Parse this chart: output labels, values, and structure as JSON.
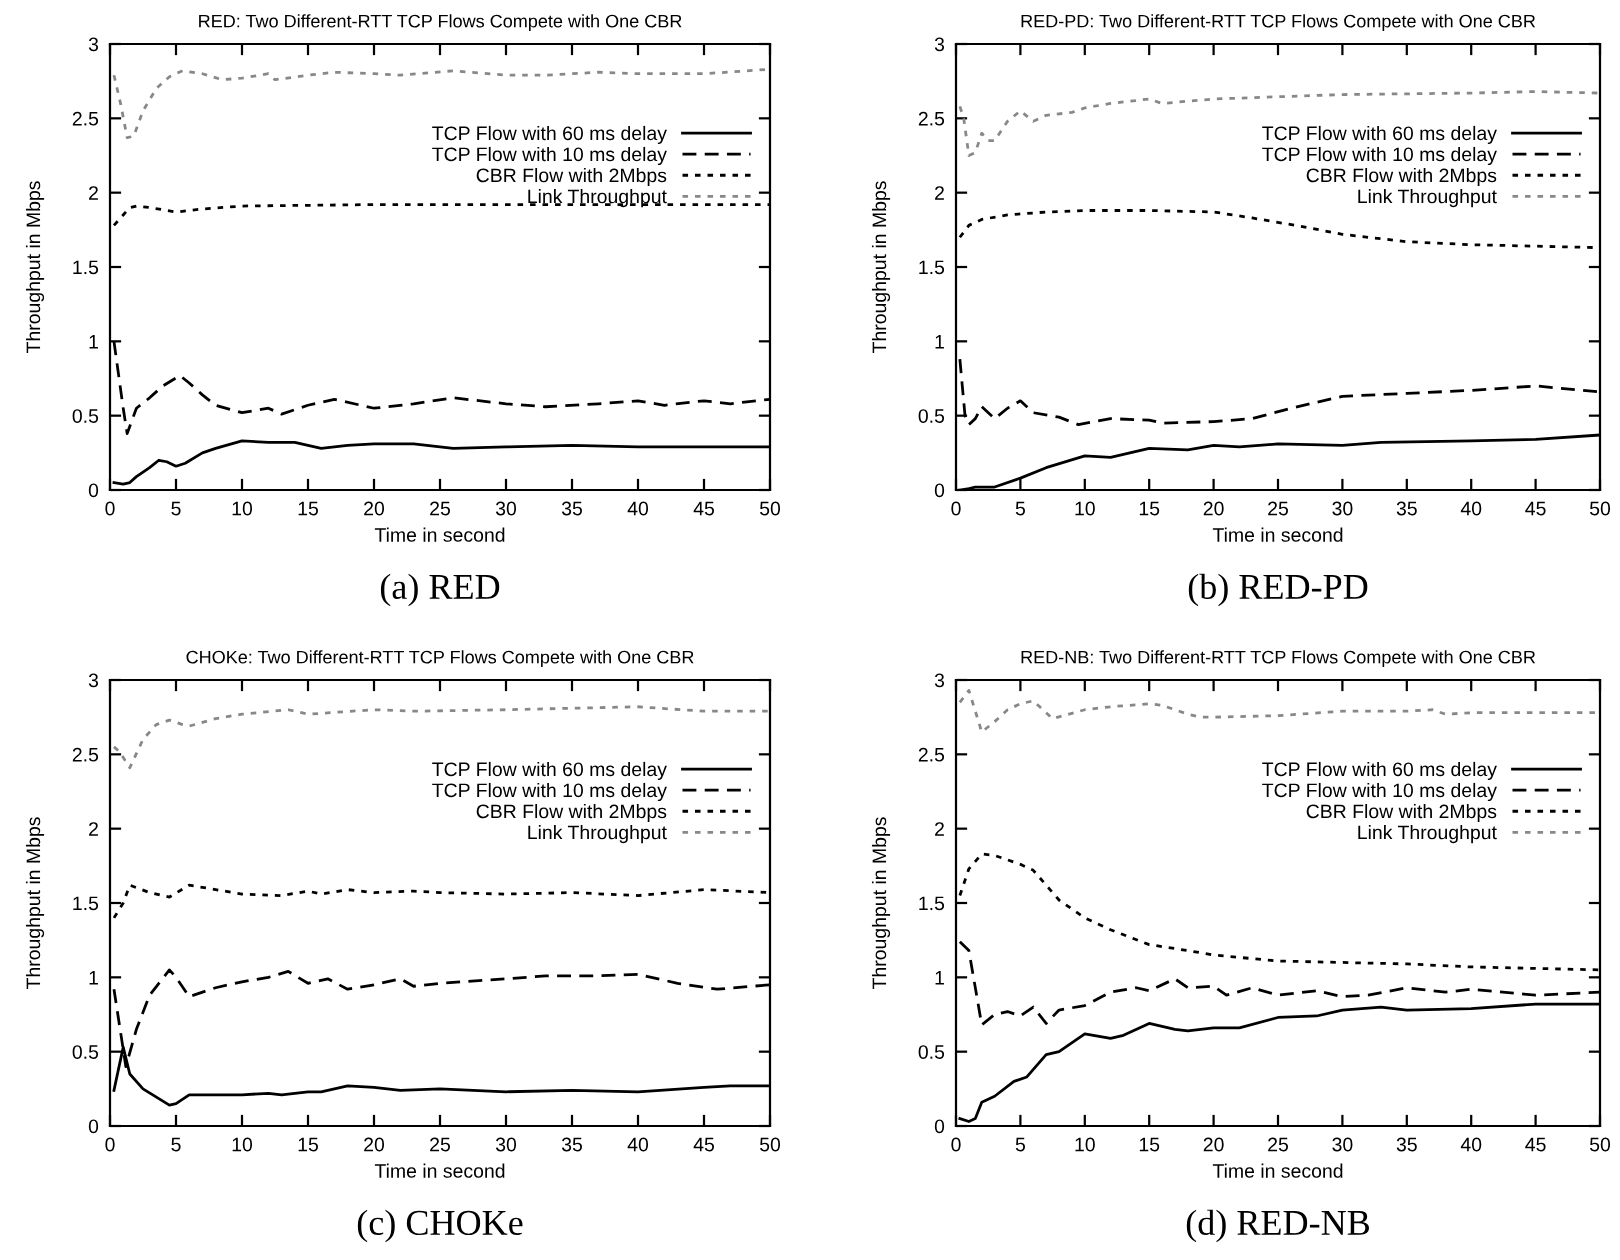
{
  "chart_data": [
    {
      "type": "line",
      "title": "RED: Two Different-RTT TCP Flows Compete with One CBR",
      "xlabel": "Time in second",
      "ylabel": "Throughput in Mbps",
      "xlim": [
        0,
        50
      ],
      "ylim": [
        0,
        3
      ],
      "xticks": [
        0,
        5,
        10,
        15,
        20,
        25,
        30,
        35,
        40,
        45,
        50
      ],
      "yticks": [
        0,
        0.5,
        1,
        1.5,
        2,
        2.5,
        3
      ],
      "grid": false,
      "legend": "top right",
      "marker": "none",
      "annotations": [
        "(a) RED"
      ],
      "series": [
        {
          "name": "TCP Flow with 60 ms delay",
          "color": "#000000",
          "line_style": "solid",
          "x": [
            0.3,
            1,
            1.5,
            2,
            3,
            3.7,
            4.3,
            5,
            5.7,
            7,
            8,
            10,
            12,
            14,
            16,
            18,
            20,
            23,
            26,
            30,
            35,
            40,
            45,
            50
          ],
          "values": [
            0.05,
            0.04,
            0.05,
            0.09,
            0.15,
            0.2,
            0.19,
            0.16,
            0.18,
            0.25,
            0.28,
            0.33,
            0.32,
            0.32,
            0.28,
            0.3,
            0.31,
            0.31,
            0.28,
            0.29,
            0.3,
            0.29,
            0.29,
            0.29
          ]
        },
        {
          "name": "TCP Flow with 10 ms delay",
          "color": "#000000",
          "line_style": "dashed",
          "x": [
            0.3,
            1,
            1.3,
            2,
            3,
            4,
            5.3,
            6,
            7,
            8,
            10,
            12,
            13,
            15,
            17,
            20,
            23,
            26,
            30,
            33,
            37,
            40,
            42,
            45,
            47,
            50
          ],
          "values": [
            1.0,
            0.55,
            0.38,
            0.55,
            0.62,
            0.7,
            0.77,
            0.72,
            0.64,
            0.57,
            0.52,
            0.55,
            0.51,
            0.57,
            0.61,
            0.55,
            0.58,
            0.62,
            0.58,
            0.56,
            0.58,
            0.6,
            0.57,
            0.6,
            0.58,
            0.61
          ]
        },
        {
          "name": "CBR Flow with 2Mbps",
          "color": "#000000",
          "line_style": "dotted",
          "x": [
            0.3,
            1,
            1.5,
            2,
            3,
            5,
            7,
            10,
            20,
            30,
            40,
            50
          ],
          "values": [
            1.78,
            1.85,
            1.9,
            1.91,
            1.9,
            1.87,
            1.89,
            1.91,
            1.92,
            1.92,
            1.92,
            1.92
          ]
        },
        {
          "name": "Link Throughput",
          "color": "#888888",
          "line_style": "dotted",
          "x": [
            0.3,
            0.8,
            1.3,
            1.8,
            2.5,
            3.5,
            4.5,
            5.5,
            7,
            8.5,
            10,
            12,
            12.5,
            15,
            17,
            20,
            22,
            26,
            30,
            33,
            37,
            40,
            45,
            50
          ],
          "values": [
            2.79,
            2.6,
            2.37,
            2.38,
            2.55,
            2.7,
            2.78,
            2.82,
            2.8,
            2.76,
            2.77,
            2.8,
            2.76,
            2.79,
            2.81,
            2.8,
            2.79,
            2.82,
            2.79,
            2.79,
            2.81,
            2.8,
            2.8,
            2.83
          ]
        }
      ]
    },
    {
      "type": "line",
      "title": "RED-PD: Two Different-RTT TCP Flows Compete with One CBR",
      "xlabel": "Time in second",
      "ylabel": "Throughput in Mbps",
      "xlim": [
        0,
        50
      ],
      "ylim": [
        0,
        3
      ],
      "xticks": [
        0,
        5,
        10,
        15,
        20,
        25,
        30,
        35,
        40,
        45,
        50
      ],
      "yticks": [
        0,
        0.5,
        1,
        1.5,
        2,
        2.5,
        3
      ],
      "grid": false,
      "legend": "top right",
      "marker": "none",
      "annotations": [
        "(b) RED-PD"
      ],
      "series": [
        {
          "name": "TCP Flow with 60 ms delay",
          "color": "#000000",
          "line_style": "solid",
          "x": [
            0.3,
            1,
            1.5,
            3,
            5,
            7,
            10,
            12,
            15,
            18,
            20,
            22,
            25,
            30,
            33,
            40,
            45,
            50
          ],
          "values": [
            0,
            0.01,
            0.02,
            0.02,
            0.08,
            0.15,
            0.23,
            0.22,
            0.28,
            0.27,
            0.3,
            0.29,
            0.31,
            0.3,
            0.32,
            0.33,
            0.34,
            0.37
          ]
        },
        {
          "name": "TCP Flow with 10 ms delay",
          "color": "#000000",
          "line_style": "dashed",
          "x": [
            0.3,
            0.7,
            1,
            1.5,
            2,
            3,
            4,
            5,
            6,
            8,
            9.5,
            12,
            15,
            16,
            20,
            23,
            26,
            30,
            35,
            40,
            45,
            50
          ],
          "values": [
            0.88,
            0.5,
            0.44,
            0.48,
            0.56,
            0.48,
            0.55,
            0.6,
            0.52,
            0.49,
            0.44,
            0.48,
            0.47,
            0.45,
            0.46,
            0.48,
            0.55,
            0.63,
            0.65,
            0.67,
            0.7,
            0.66
          ]
        },
        {
          "name": "CBR Flow with 2Mbps",
          "color": "#000000",
          "line_style": "dotted",
          "x": [
            0.3,
            1,
            2,
            4,
            7,
            10,
            15,
            20,
            23,
            27,
            30,
            35,
            40,
            45,
            50
          ],
          "values": [
            1.7,
            1.78,
            1.82,
            1.85,
            1.87,
            1.88,
            1.88,
            1.87,
            1.83,
            1.77,
            1.72,
            1.67,
            1.65,
            1.64,
            1.63
          ]
        },
        {
          "name": "Link Throughput",
          "color": "#888888",
          "line_style": "dotted",
          "x": [
            0.3,
            0.6,
            1,
            1.5,
            2,
            2.5,
            3,
            4,
            5,
            6,
            7,
            9,
            10,
            12,
            15,
            16,
            20,
            30,
            40,
            45,
            50
          ],
          "values": [
            2.58,
            2.5,
            2.25,
            2.27,
            2.4,
            2.35,
            2.35,
            2.48,
            2.55,
            2.48,
            2.52,
            2.54,
            2.57,
            2.6,
            2.63,
            2.6,
            2.63,
            2.66,
            2.67,
            2.68,
            2.67
          ]
        }
      ]
    },
    {
      "type": "line",
      "title": "CHOKe: Two Different-RTT TCP Flows Compete with One CBR",
      "xlabel": "Time in second",
      "ylabel": "Throughput in Mbps",
      "xlim": [
        0,
        50
      ],
      "ylim": [
        0,
        3
      ],
      "xticks": [
        0,
        5,
        10,
        15,
        20,
        25,
        30,
        35,
        40,
        45,
        50
      ],
      "yticks": [
        0,
        0.5,
        1,
        1.5,
        2,
        2.5,
        3
      ],
      "grid": false,
      "legend": "top right",
      "marker": "none",
      "annotations": [
        "(c) CHOKe"
      ],
      "series": [
        {
          "name": "TCP Flow with 60 ms delay",
          "color": "#000000",
          "line_style": "solid",
          "x": [
            0.3,
            1,
            1.5,
            2.5,
            4.5,
            5,
            6,
            8,
            10,
            12,
            13,
            15,
            16,
            18,
            20,
            22,
            25,
            30,
            35,
            40,
            45,
            47,
            50
          ],
          "values": [
            0.24,
            0.53,
            0.35,
            0.25,
            0.14,
            0.15,
            0.21,
            0.21,
            0.21,
            0.22,
            0.21,
            0.23,
            0.23,
            0.27,
            0.26,
            0.24,
            0.25,
            0.23,
            0.24,
            0.23,
            0.26,
            0.27,
            0.27
          ]
        },
        {
          "name": "TCP Flow with 10 ms delay",
          "color": "#000000",
          "line_style": "dashed",
          "x": [
            0.3,
            1.2,
            2,
            3,
            4.5,
            5,
            6,
            8,
            10,
            12,
            13.5,
            15,
            16.5,
            18,
            20,
            22,
            23,
            25,
            30,
            33,
            37,
            40,
            43,
            46,
            50
          ],
          "values": [
            0.92,
            0.4,
            0.65,
            0.88,
            1.05,
            1.0,
            0.87,
            0.93,
            0.97,
            1.0,
            1.04,
            0.96,
            0.99,
            0.92,
            0.95,
            0.99,
            0.94,
            0.96,
            0.99,
            1.01,
            1.01,
            1.02,
            0.96,
            0.92,
            0.95
          ]
        },
        {
          "name": "CBR Flow with 2Mbps",
          "color": "#000000",
          "line_style": "dotted",
          "x": [
            0.3,
            1,
            1.5,
            3,
            4.5,
            6,
            8,
            10,
            13,
            15,
            16,
            18,
            20,
            23,
            25,
            30,
            35,
            40,
            45,
            50
          ],
          "values": [
            1.4,
            1.5,
            1.62,
            1.57,
            1.54,
            1.62,
            1.59,
            1.56,
            1.55,
            1.58,
            1.56,
            1.59,
            1.57,
            1.58,
            1.57,
            1.56,
            1.57,
            1.55,
            1.59,
            1.57
          ]
        },
        {
          "name": "Link Throughput",
          "color": "#888888",
          "line_style": "dotted",
          "x": [
            0.3,
            0.7,
            1.5,
            2.5,
            3.5,
            4.5,
            5.5,
            6,
            8,
            10,
            13.5,
            15,
            20,
            23,
            30,
            35,
            40,
            45,
            50
          ],
          "values": [
            2.55,
            2.52,
            2.41,
            2.6,
            2.7,
            2.73,
            2.7,
            2.69,
            2.74,
            2.77,
            2.8,
            2.77,
            2.8,
            2.79,
            2.8,
            2.81,
            2.82,
            2.79,
            2.79
          ]
        }
      ]
    },
    {
      "type": "line",
      "title": "RED-NB: Two Different-RTT TCP Flows Compete with One CBR",
      "xlabel": "Time in second",
      "ylabel": "Throughput in Mbps",
      "xlim": [
        0,
        50
      ],
      "ylim": [
        0,
        3
      ],
      "xticks": [
        0,
        5,
        10,
        15,
        20,
        25,
        30,
        35,
        40,
        45,
        50
      ],
      "yticks": [
        0,
        0.5,
        1,
        1.5,
        2,
        2.5,
        3
      ],
      "grid": false,
      "legend": "top right",
      "marker": "none",
      "annotations": [
        "(d) RED-NB"
      ],
      "series": [
        {
          "name": "TCP Flow with 60 ms delay",
          "color": "#000000",
          "line_style": "solid",
          "x": [
            0.3,
            1,
            1.5,
            2,
            3,
            4.5,
            5.5,
            7,
            8,
            10,
            12,
            13,
            15,
            17,
            18,
            20,
            22,
            25,
            28,
            30,
            33,
            35,
            40,
            45,
            50
          ],
          "values": [
            0.05,
            0.03,
            0.05,
            0.16,
            0.2,
            0.3,
            0.33,
            0.48,
            0.5,
            0.62,
            0.59,
            0.61,
            0.69,
            0.65,
            0.64,
            0.66,
            0.66,
            0.73,
            0.74,
            0.78,
            0.8,
            0.78,
            0.79,
            0.82,
            0.82
          ]
        },
        {
          "name": "TCP Flow with 10 ms delay",
          "color": "#000000",
          "line_style": "dashed",
          "x": [
            0.3,
            1,
            2,
            3,
            4,
            5,
            6,
            7,
            8,
            10,
            12,
            14,
            15,
            17,
            18,
            20,
            21,
            23,
            25,
            28,
            30,
            32,
            35,
            38,
            40,
            45,
            50
          ],
          "values": [
            1.24,
            1.18,
            0.68,
            0.75,
            0.77,
            0.74,
            0.8,
            0.69,
            0.78,
            0.81,
            0.9,
            0.93,
            0.91,
            0.99,
            0.93,
            0.94,
            0.88,
            0.93,
            0.88,
            0.91,
            0.87,
            0.88,
            0.93,
            0.9,
            0.92,
            0.88,
            0.9
          ]
        },
        {
          "name": "CBR Flow with 2Mbps",
          "color": "#000000",
          "line_style": "dotted",
          "x": [
            0.3,
            1,
            2,
            3,
            5,
            6,
            7,
            8,
            10,
            12,
            15,
            18,
            20,
            25,
            30,
            35,
            40,
            45,
            50
          ],
          "values": [
            1.55,
            1.73,
            1.83,
            1.82,
            1.76,
            1.72,
            1.62,
            1.52,
            1.4,
            1.32,
            1.22,
            1.18,
            1.15,
            1.11,
            1.1,
            1.09,
            1.07,
            1.06,
            1.05
          ]
        },
        {
          "name": "Link Throughput",
          "color": "#888888",
          "line_style": "dotted",
          "x": [
            0.3,
            1,
            2,
            3,
            4,
            5,
            6,
            7,
            7.5,
            10,
            12,
            15,
            16,
            18,
            19,
            20,
            25,
            30,
            35,
            37,
            38,
            40,
            45,
            50
          ],
          "values": [
            2.85,
            2.93,
            2.65,
            2.72,
            2.8,
            2.84,
            2.86,
            2.78,
            2.74,
            2.8,
            2.82,
            2.84,
            2.83,
            2.77,
            2.75,
            2.75,
            2.76,
            2.79,
            2.79,
            2.8,
            2.77,
            2.78,
            2.78,
            2.78
          ]
        }
      ]
    }
  ]
}
